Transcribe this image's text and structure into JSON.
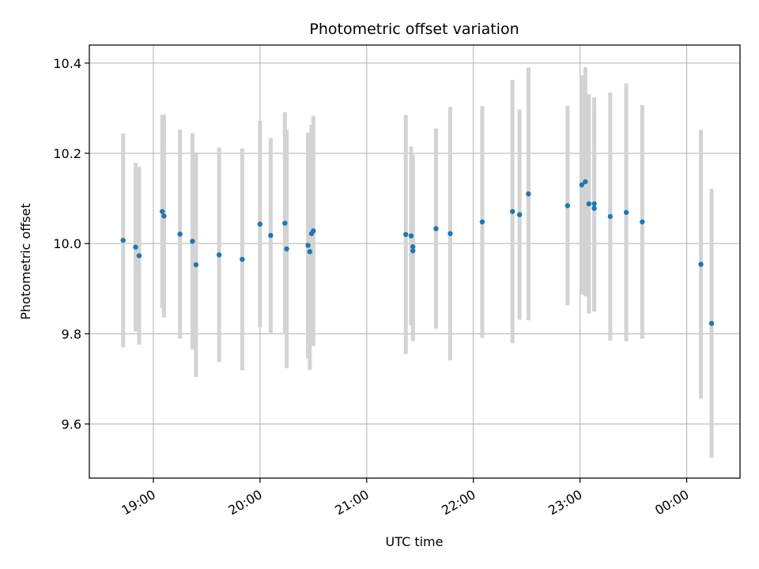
{
  "chart_data": {
    "type": "scatter",
    "title": "Photometric offset variation",
    "xlabel": "UTC time",
    "ylabel": "Photometric offset",
    "x_tick_labels": [
      "19:00",
      "20:00",
      "21:00",
      "22:00",
      "23:00",
      "00:00"
    ],
    "x_tick_hours": [
      19,
      20,
      21,
      22,
      23,
      24
    ],
    "x_range_hours": [
      18.4,
      24.5
    ],
    "ylim": [
      9.48,
      10.44
    ],
    "y_ticks": [
      9.6,
      9.8,
      10.0,
      10.2,
      10.4
    ],
    "y_tick_labels": [
      "9.6",
      "9.8",
      "10.0",
      "10.2",
      "10.4"
    ],
    "grid": true,
    "colors": {
      "points": "#1f77b4",
      "errorbars": "#d3d3d3",
      "grid": "#b0b0b0"
    },
    "series": [
      {
        "points": [
          {
            "t": "18:43",
            "y": 10.007,
            "err": 0.237
          },
          {
            "t": "18:50",
            "y": 9.992,
            "err": 0.187
          },
          {
            "t": "18:52",
            "y": 9.973,
            "err": 0.197
          },
          {
            "t": "19:05",
            "y": 10.071,
            "err": 0.214
          },
          {
            "t": "19:06",
            "y": 10.061,
            "err": 0.225
          },
          {
            "t": "19:15",
            "y": 10.021,
            "err": 0.232
          },
          {
            "t": "19:22",
            "y": 10.005,
            "err": 0.24
          },
          {
            "t": "19:24",
            "y": 9.953,
            "err": 0.249
          },
          {
            "t": "19:37",
            "y": 9.975,
            "err": 0.238
          },
          {
            "t": "19:50",
            "y": 9.965,
            "err": 0.246
          },
          {
            "t": "20:00",
            "y": 10.043,
            "err": 0.229
          },
          {
            "t": "20:06",
            "y": 10.018,
            "err": 0.216
          },
          {
            "t": "20:14",
            "y": 10.045,
            "err": 0.246
          },
          {
            "t": "20:15",
            "y": 9.988,
            "err": 0.264
          },
          {
            "t": "20:27",
            "y": 9.996,
            "err": 0.25
          },
          {
            "t": "20:28",
            "y": 9.982,
            "err": 0.262
          },
          {
            "t": "20:29",
            "y": 10.022,
            "err": 0.241
          },
          {
            "t": "20:30",
            "y": 10.028,
            "err": 0.255
          },
          {
            "t": "21:22",
            "y": 10.02,
            "err": 0.265
          },
          {
            "t": "21:25",
            "y": 10.017,
            "err": 0.198
          },
          {
            "t": "21:26",
            "y": 9.984,
            "err": 0.2
          },
          {
            "t": "21:26",
            "y": 9.993,
            "err": 0.204
          },
          {
            "t": "21:39",
            "y": 10.033,
            "err": 0.222
          },
          {
            "t": "21:47",
            "y": 10.022,
            "err": 0.281
          },
          {
            "t": "22:05",
            "y": 10.048,
            "err": 0.257
          },
          {
            "t": "22:22",
            "y": 10.071,
            "err": 0.292
          },
          {
            "t": "22:26",
            "y": 10.064,
            "err": 0.233
          },
          {
            "t": "22:31",
            "y": 10.11,
            "err": 0.28
          },
          {
            "t": "22:53",
            "y": 10.084,
            "err": 0.221
          },
          {
            "t": "23:01",
            "y": 10.13,
            "err": 0.243
          },
          {
            "t": "23:03",
            "y": 10.137,
            "err": 0.254
          },
          {
            "t": "23:05",
            "y": 10.088,
            "err": 0.243
          },
          {
            "t": "23:08",
            "y": 10.078,
            "err": 0.229
          },
          {
            "t": "23:08",
            "y": 10.088,
            "err": 0.236
          },
          {
            "t": "23:17",
            "y": 10.06,
            "err": 0.275
          },
          {
            "t": "23:26",
            "y": 10.069,
            "err": 0.286
          },
          {
            "t": "23:35",
            "y": 10.048,
            "err": 0.259
          },
          {
            "t": "00:08",
            "y": 9.954,
            "err": 0.298
          },
          {
            "t": "00:14",
            "y": 9.823,
            "err": 0.298
          }
        ]
      }
    ]
  }
}
